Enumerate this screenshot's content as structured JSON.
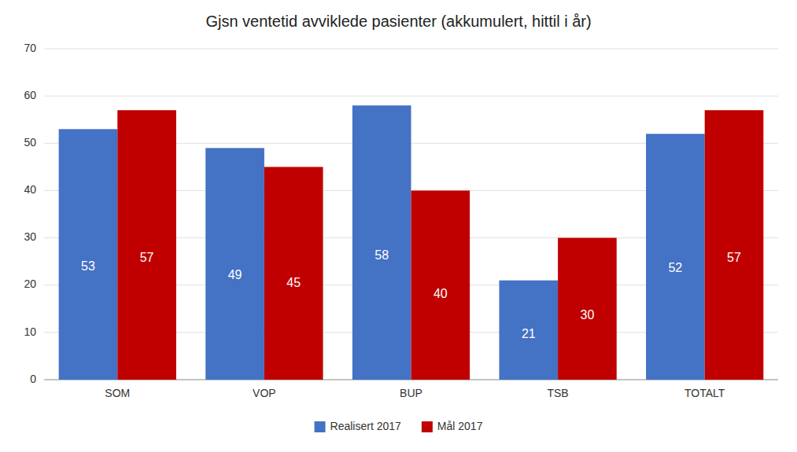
{
  "chart_data": {
    "type": "bar",
    "title": "Gjsn ventetid avviklede pasienter (akkumulert, hittil i år)",
    "categories": [
      "SOM",
      "VOP",
      "BUP",
      "TSB",
      "TOTALT"
    ],
    "series": [
      {
        "name": "Realisert 2017",
        "color": "#4472C4",
        "values": [
          53,
          49,
          58,
          21,
          52
        ]
      },
      {
        "name": "Mål 2017",
        "color": "#C00000",
        "values": [
          57,
          45,
          40,
          30,
          57
        ]
      }
    ],
    "ylim": [
      0,
      70
    ],
    "yticks": [
      0,
      10,
      20,
      30,
      40,
      50,
      60,
      70
    ],
    "grid": true,
    "legend": "bottom",
    "data_labels": true
  }
}
